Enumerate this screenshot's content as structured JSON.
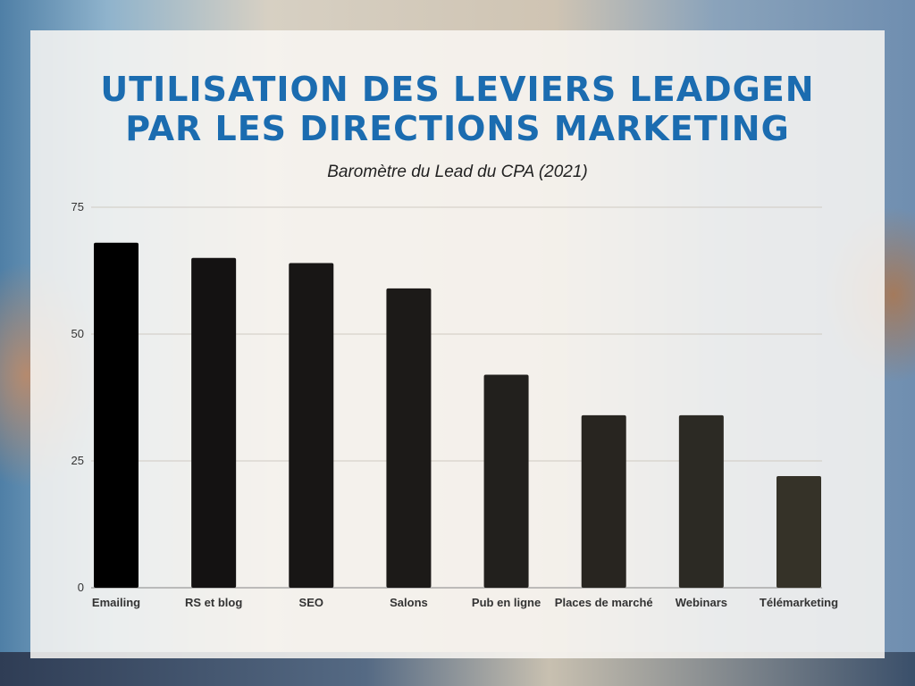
{
  "title_line1": "UTILISATION DES LEVIERS LEADGEN",
  "title_line2": "PAR LES DIRECTIONS MARKETING",
  "subtitle": "Baromètre du Lead du CPA (2021)",
  "chart_data": {
    "type": "bar",
    "title": "UTILISATION DES LEVIERS LEADGEN PAR LES DIRECTIONS MARKETING",
    "subtitle": "Baromètre du Lead du CPA (2021)",
    "categories": [
      "Emailing",
      "RS et blog",
      "SEO",
      "Salons",
      "Pub en ligne",
      "Places de marché",
      "Webinars",
      "Télémarketing"
    ],
    "values": [
      68,
      65,
      64,
      59,
      42,
      34,
      34,
      22
    ],
    "ylim": [
      0,
      75
    ],
    "yticks": [
      0,
      25,
      50,
      75
    ],
    "xlabel": "",
    "ylabel": "",
    "grid": true,
    "legend": "none",
    "colors": [
      "#000000",
      "#141212",
      "#181615",
      "#1c1a18",
      "#22201d",
      "#282520",
      "#2c2a24",
      "#353228"
    ]
  }
}
